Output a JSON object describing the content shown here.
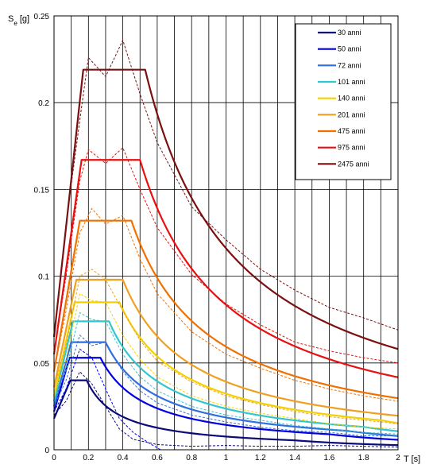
{
  "chart_data": {
    "type": "line",
    "title": "",
    "ylabel_main": "S",
    "ylabel_sub": "e",
    "ylabel_unit": " [g]",
    "xlabel": "T  [s]",
    "xlim": [
      0,
      2.0
    ],
    "ylim": [
      0,
      0.25
    ],
    "x_major_step": 0.2,
    "x_minor_step": 0.1,
    "y_step": 0.05,
    "x_ticks": [
      "0",
      "0.2",
      "0.4",
      "0.6",
      "0.8",
      "1",
      "1.2",
      "1.4",
      "1.6",
      "1.8",
      "2"
    ],
    "y_ticks": [
      "0",
      "0.05",
      "0.1",
      "0.15",
      "0.2",
      "0.25"
    ],
    "grid": true,
    "legend_position": "top-right",
    "series": [
      {
        "name": "30 anni",
        "color": "#0a0a78",
        "params": {
          "ag": 0.018,
          "plateau": 0.04,
          "Tb": 0.095,
          "Tc": 0.19,
          "Td": 1.4
        },
        "dashed": [
          [
            0,
            0.02
          ],
          [
            0.07,
            0.028
          ],
          [
            0.15,
            0.045
          ],
          [
            0.22,
            0.038
          ],
          [
            0.3,
            0.025
          ],
          [
            0.38,
            0.012
          ],
          [
            0.46,
            0.006
          ],
          [
            0.6,
            0.003
          ],
          [
            0.8,
            0.002
          ],
          [
            1.0,
            0.0025
          ],
          [
            1.2,
            0.002
          ],
          [
            1.4,
            0.002
          ],
          [
            1.6,
            0.0025
          ],
          [
            1.8,
            0.002
          ],
          [
            2.0,
            0.0015
          ]
        ]
      },
      {
        "name": "50 anni",
        "color": "#0000e0",
        "params": {
          "ag": 0.022,
          "plateau": 0.053,
          "Tb": 0.09,
          "Tc": 0.27,
          "Td": 1.6
        },
        "dashed": [
          [
            0,
            0.022
          ],
          [
            0.07,
            0.035
          ],
          [
            0.15,
            0.058
          ],
          [
            0.22,
            0.053
          ],
          [
            0.3,
            0.035
          ],
          [
            0.38,
            0.018
          ],
          [
            0.46,
            0.01
          ],
          [
            0.55,
            0.004
          ],
          [
            0.62,
            0.0
          ],
          [
            0.8,
            0.0
          ],
          [
            1.0,
            0.0
          ],
          [
            1.2,
            0.0
          ],
          [
            1.4,
            0.0
          ],
          [
            1.6,
            0.0
          ],
          [
            1.8,
            0.0
          ],
          [
            2.0,
            0.0
          ]
        ]
      },
      {
        "name": "72 anni",
        "color": "#2f6fe0",
        "params": {
          "ag": 0.025,
          "plateau": 0.062,
          "Tb": 0.1,
          "Tc": 0.3,
          "Td": 1.7
        },
        "dashed": [
          [
            0,
            0.025
          ],
          [
            0.07,
            0.04
          ],
          [
            0.15,
            0.066
          ],
          [
            0.22,
            0.06
          ],
          [
            0.3,
            0.062
          ],
          [
            0.4,
            0.045
          ],
          [
            0.5,
            0.034
          ],
          [
            0.6,
            0.027
          ],
          [
            0.8,
            0.02
          ],
          [
            1.0,
            0.016
          ],
          [
            1.2,
            0.013
          ],
          [
            1.4,
            0.011
          ],
          [
            1.6,
            0.01
          ],
          [
            1.8,
            0.008
          ],
          [
            2.0,
            0.008
          ]
        ]
      },
      {
        "name": "101 anni",
        "color": "#33c6cc",
        "params": {
          "ag": 0.028,
          "plateau": 0.074,
          "Tb": 0.11,
          "Tc": 0.32,
          "Td": 1.8
        },
        "dashed": [
          [
            0,
            0.028
          ],
          [
            0.07,
            0.046
          ],
          [
            0.15,
            0.079
          ],
          [
            0.22,
            0.075
          ],
          [
            0.3,
            0.074
          ],
          [
            0.4,
            0.055
          ],
          [
            0.5,
            0.042
          ],
          [
            0.6,
            0.034
          ],
          [
            0.8,
            0.025
          ],
          [
            1.0,
            0.02
          ],
          [
            1.2,
            0.017
          ],
          [
            1.4,
            0.014
          ],
          [
            1.6,
            0.012
          ],
          [
            1.8,
            0.01
          ],
          [
            2.0,
            0.009
          ]
        ]
      },
      {
        "name": "140 anni",
        "color": "#f5d000",
        "params": {
          "ag": 0.031,
          "plateau": 0.085,
          "Tb": 0.12,
          "Tc": 0.38,
          "Td": 1.9
        },
        "dashed": [
          [
            0,
            0.031
          ],
          [
            0.07,
            0.052
          ],
          [
            0.15,
            0.09
          ],
          [
            0.22,
            0.086
          ],
          [
            0.3,
            0.085
          ],
          [
            0.4,
            0.066
          ],
          [
            0.5,
            0.052
          ],
          [
            0.6,
            0.042
          ],
          [
            0.8,
            0.031
          ],
          [
            1.0,
            0.025
          ],
          [
            1.2,
            0.021
          ],
          [
            1.4,
            0.018
          ],
          [
            1.6,
            0.015
          ],
          [
            1.8,
            0.013
          ],
          [
            2.0,
            0.012
          ]
        ]
      },
      {
        "name": "201 anni",
        "color": "#f0a020",
        "params": {
          "ag": 0.036,
          "plateau": 0.098,
          "Tb": 0.13,
          "Tc": 0.4,
          "Td": 2.0
        },
        "dashed": [
          [
            0,
            0.036
          ],
          [
            0.07,
            0.06
          ],
          [
            0.15,
            0.1
          ],
          [
            0.22,
            0.104
          ],
          [
            0.3,
            0.098
          ],
          [
            0.4,
            0.08
          ],
          [
            0.5,
            0.063
          ],
          [
            0.6,
            0.051
          ],
          [
            0.8,
            0.039
          ],
          [
            1.0,
            0.031
          ],
          [
            1.2,
            0.026
          ],
          [
            1.4,
            0.022
          ],
          [
            1.6,
            0.019
          ],
          [
            1.8,
            0.017
          ],
          [
            2.0,
            0.015
          ]
        ]
      },
      {
        "name": "475 anni",
        "color": "#f07000",
        "params": {
          "ag": 0.045,
          "plateau": 0.132,
          "Tb": 0.15,
          "Tc": 0.45,
          "Td": 2.2
        },
        "dashed": [
          [
            0,
            0.045
          ],
          [
            0.07,
            0.08
          ],
          [
            0.15,
            0.125
          ],
          [
            0.22,
            0.139
          ],
          [
            0.3,
            0.13
          ],
          [
            0.4,
            0.135
          ],
          [
            0.5,
            0.11
          ],
          [
            0.6,
            0.09
          ],
          [
            0.8,
            0.068
          ],
          [
            1.0,
            0.055
          ],
          [
            1.2,
            0.047
          ],
          [
            1.4,
            0.04
          ],
          [
            1.6,
            0.035
          ],
          [
            1.8,
            0.031
          ],
          [
            2.0,
            0.028
          ]
        ]
      },
      {
        "name": "975 anni",
        "color": "#e81010",
        "params": {
          "ag": 0.055,
          "plateau": 0.167,
          "Tb": 0.16,
          "Tc": 0.5,
          "Td": 2.4
        },
        "dashed": [
          [
            0,
            0.055
          ],
          [
            0.07,
            0.1
          ],
          [
            0.15,
            0.155
          ],
          [
            0.2,
            0.173
          ],
          [
            0.3,
            0.165
          ],
          [
            0.4,
            0.174
          ],
          [
            0.5,
            0.15
          ],
          [
            0.6,
            0.128
          ],
          [
            0.8,
            0.101
          ],
          [
            1.0,
            0.084
          ],
          [
            1.2,
            0.072
          ],
          [
            1.4,
            0.062
          ],
          [
            1.6,
            0.057
          ],
          [
            1.8,
            0.053
          ],
          [
            2.0,
            0.05
          ]
        ]
      },
      {
        "name": "2475 anni",
        "color": "#7a1010",
        "params": {
          "ag": 0.065,
          "plateau": 0.219,
          "Tb": 0.17,
          "Tc": 0.53,
          "Td": 2.6
        },
        "dashed": [
          [
            0,
            0.065
          ],
          [
            0.07,
            0.13
          ],
          [
            0.15,
            0.19
          ],
          [
            0.2,
            0.226
          ],
          [
            0.3,
            0.215
          ],
          [
            0.4,
            0.236
          ],
          [
            0.5,
            0.205
          ],
          [
            0.6,
            0.177
          ],
          [
            0.8,
            0.14
          ],
          [
            1.0,
            0.121
          ],
          [
            1.2,
            0.104
          ],
          [
            1.4,
            0.092
          ],
          [
            1.6,
            0.082
          ],
          [
            1.8,
            0.076
          ],
          [
            2.0,
            0.069
          ]
        ]
      }
    ]
  }
}
